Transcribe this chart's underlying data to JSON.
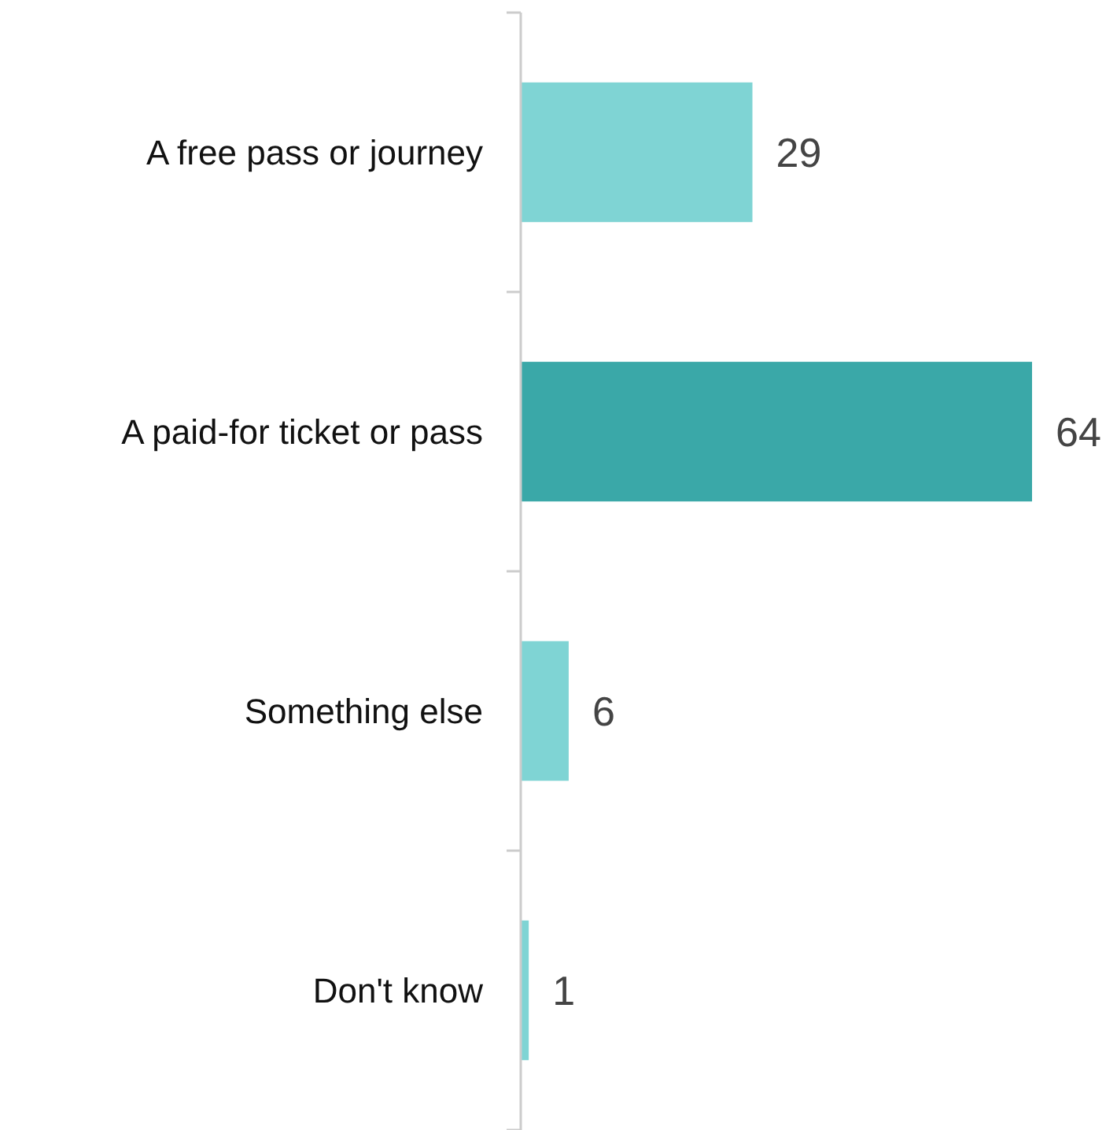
{
  "chart_data": {
    "type": "bar",
    "orientation": "horizontal",
    "categories": [
      "A free pass or journey",
      "A paid-for ticket or pass",
      "Something else",
      "Don't know"
    ],
    "values": [
      29,
      64,
      6,
      1
    ],
    "colors": [
      "#7fd4d4",
      "#3aa8a8",
      "#7fd4d4",
      "#7fd4d4"
    ],
    "data_labels": true
  }
}
